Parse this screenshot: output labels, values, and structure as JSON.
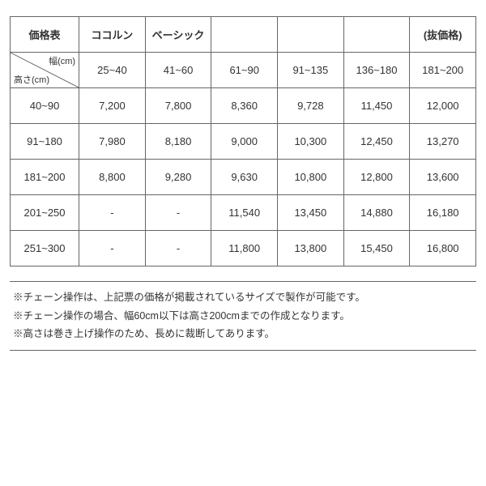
{
  "table": {
    "header": {
      "title": "価格表",
      "brand1": "ココルン",
      "brand2": "ベーシック",
      "c3": "",
      "c4": "",
      "c5": "",
      "price_note": "(抜価格)"
    },
    "diag": {
      "top": "幅(cm)",
      "bottom": "高さ(cm)"
    },
    "width_ranges": [
      "25~40",
      "41~60",
      "61~90",
      "91~135",
      "136~180",
      "181~200"
    ],
    "rows": [
      {
        "h": "40~90",
        "v": [
          "7,200",
          "7,800",
          "8,360",
          "9,728",
          "11,450",
          "12,000"
        ]
      },
      {
        "h": "91~180",
        "v": [
          "7,980",
          "8,180",
          "9,000",
          "10,300",
          "12,450",
          "13,270"
        ]
      },
      {
        "h": "181~200",
        "v": [
          "8,800",
          "9,280",
          "9,630",
          "10,800",
          "12,800",
          "13,600"
        ]
      },
      {
        "h": "201~250",
        "v": [
          "-",
          "-",
          "11,540",
          "13,450",
          "14,880",
          "16,180"
        ]
      },
      {
        "h": "251~300",
        "v": [
          "-",
          "-",
          "11,800",
          "13,800",
          "15,450",
          "16,800"
        ]
      }
    ]
  },
  "notes": [
    "※チェーン操作は、上記票の価格が掲載されているサイズで製作が可能です。",
    "※チェーン操作の場合、幅60cm以下は高さ200cmまでの作成となります。",
    "※高さは巻き上げ操作のため、長めに裁断してあります。"
  ]
}
